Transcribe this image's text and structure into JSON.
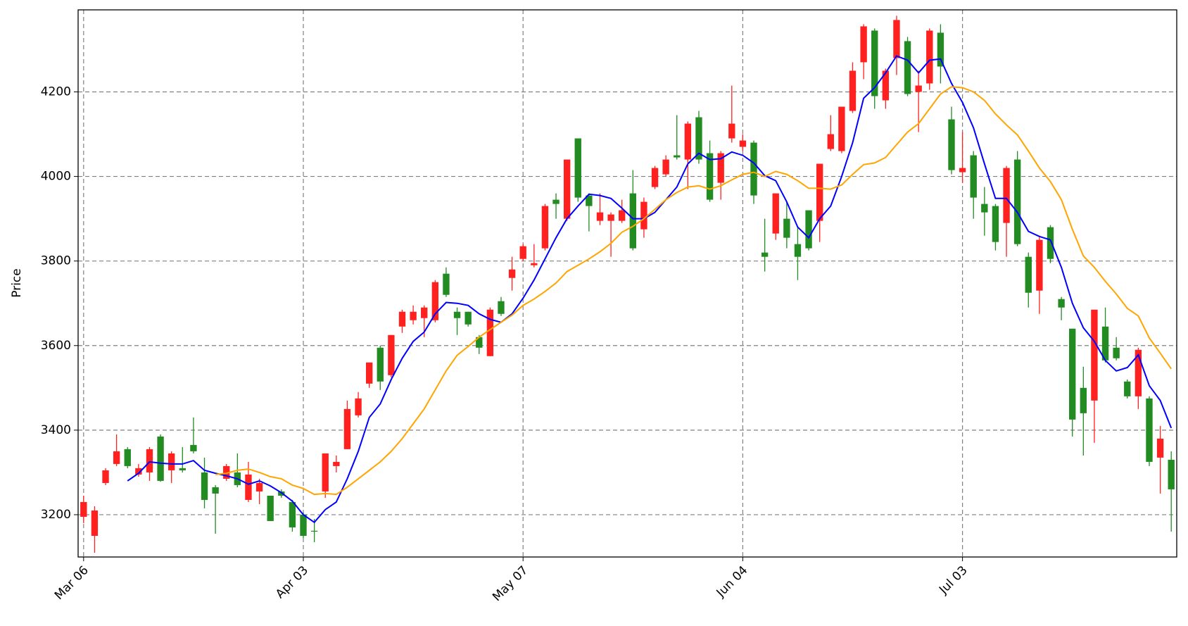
{
  "chart_data": {
    "type": "candlestick",
    "y_label": "Price",
    "categories": [
      "Mar 06",
      null,
      null,
      null,
      null,
      null,
      null,
      null,
      null,
      null,
      null,
      null,
      null,
      null,
      null,
      null,
      null,
      null,
      null,
      null,
      "Apr 03",
      null,
      null,
      null,
      null,
      null,
      null,
      null,
      null,
      null,
      null,
      null,
      null,
      null,
      null,
      null,
      null,
      null,
      null,
      null,
      "May 07",
      null,
      null,
      null,
      null,
      null,
      null,
      null,
      null,
      null,
      null,
      null,
      null,
      null,
      null,
      null,
      null,
      null,
      null,
      null,
      "Jun 04",
      null,
      null,
      null,
      null,
      null,
      null,
      null,
      null,
      null,
      null,
      null,
      null,
      null,
      null,
      null,
      null,
      null,
      null,
      null,
      "Jul 03",
      null,
      null,
      null,
      null,
      null,
      null,
      null,
      null,
      null,
      null,
      null,
      null,
      null,
      null,
      null,
      null,
      null,
      null,
      null
    ],
    "open": [
      3195,
      3150,
      3275,
      3320,
      3355,
      3295,
      3300,
      3385,
      3305,
      3310,
      3365,
      3300,
      3265,
      3285,
      3300,
      3235,
      3255,
      3245,
      3255,
      3230,
      3200,
      3162,
      3255,
      3315,
      3355,
      3435,
      3510,
      3595,
      3530,
      3645,
      3660,
      3665,
      3660,
      3770,
      3680,
      3680,
      3620,
      3575,
      3705,
      3760,
      3805,
      3790,
      3830,
      3945,
      3900,
      4090,
      3955,
      3895,
      3895,
      3895,
      3960,
      3875,
      3975,
      4005,
      4050,
      4040,
      4140,
      4055,
      3985,
      4090,
      4070,
      4080,
      3820,
      3865,
      3900,
      3840,
      3920,
      3895,
      4065,
      4060,
      4155,
      4270,
      4345,
      4180,
      4280,
      4320,
      4200,
      4220,
      4340,
      4135,
      4010,
      4050,
      3935,
      3930,
      3890,
      4040,
      3810,
      3730,
      3880,
      3710,
      3640,
      3500,
      3470,
      3645,
      3595,
      3515,
      3480,
      3475,
      3335,
      3330
    ],
    "high": [
      3245,
      3220,
      3310,
      3390,
      3360,
      3320,
      3360,
      3390,
      3350,
      3360,
      3430,
      3335,
      3270,
      3320,
      3345,
      3325,
      3285,
      3245,
      3260,
      3235,
      3205,
      3190,
      3345,
      3340,
      3470,
      3490,
      3560,
      3600,
      3625,
      3685,
      3695,
      3695,
      3755,
      3785,
      3690,
      3680,
      3625,
      3690,
      3715,
      3810,
      3840,
      3840,
      3935,
      3960,
      4040,
      4090,
      3960,
      3960,
      3915,
      3945,
      4015,
      3950,
      4025,
      4050,
      4145,
      4130,
      4155,
      4085,
      4060,
      4215,
      4100,
      4085,
      3900,
      3960,
      3940,
      3880,
      3920,
      4030,
      4145,
      4165,
      4270,
      4360,
      4350,
      4255,
      4380,
      4330,
      4250,
      4350,
      4360,
      4165,
      4105,
      4060,
      3975,
      3935,
      4025,
      4060,
      3820,
      3860,
      3885,
      3715,
      3640,
      3550,
      3685,
      3690,
      3620,
      3520,
      3595,
      3480,
      3410,
      3350
    ],
    "low": [
      3180,
      3110,
      3270,
      3315,
      3310,
      3290,
      3280,
      3278,
      3275,
      3300,
      3345,
      3215,
      3155,
      3280,
      3265,
      3230,
      3225,
      3185,
      3240,
      3160,
      3145,
      3135,
      3240,
      3300,
      3355,
      3430,
      3500,
      3495,
      3525,
      3630,
      3650,
      3620,
      3655,
      3715,
      3625,
      3645,
      3580,
      3575,
      3670,
      3730,
      3800,
      3785,
      3825,
      3900,
      3895,
      3940,
      3870,
      3885,
      3810,
      3890,
      3825,
      3855,
      3970,
      4000,
      4040,
      3970,
      4030,
      3940,
      3945,
      4080,
      4060,
      3935,
      3775,
      3850,
      3830,
      3755,
      3825,
      3845,
      4060,
      4055,
      4150,
      4230,
      4160,
      4160,
      4240,
      4190,
      4105,
      4205,
      4220,
      4005,
      3985,
      3900,
      3860,
      3825,
      3810,
      3835,
      3690,
      3675,
      3795,
      3660,
      3385,
      3340,
      3370,
      3560,
      3565,
      3475,
      3450,
      3315,
      3250,
      3160
    ],
    "close": [
      3230,
      3210,
      3305,
      3350,
      3315,
      3310,
      3355,
      3280,
      3345,
      3305,
      3350,
      3235,
      3250,
      3315,
      3270,
      3295,
      3275,
      3185,
      3245,
      3170,
      3150,
      3160,
      3345,
      3325,
      3450,
      3475,
      3560,
      3515,
      3625,
      3680,
      3680,
      3690,
      3750,
      3720,
      3665,
      3650,
      3595,
      3685,
      3675,
      3780,
      3835,
      3795,
      3930,
      3935,
      4040,
      3950,
      3930,
      3915,
      3910,
      3920,
      3830,
      3940,
      4020,
      4040,
      4045,
      4125,
      4040,
      3945,
      4055,
      4125,
      4085,
      3955,
      3810,
      3960,
      3855,
      3810,
      3830,
      4030,
      4100,
      4165,
      4250,
      4355,
      4190,
      4250,
      4370,
      4195,
      4215,
      4345,
      4260,
      4015,
      4020,
      3950,
      3915,
      3845,
      4020,
      3840,
      3725,
      3850,
      3805,
      3690,
      3425,
      3440,
      3685,
      3565,
      3570,
      3480,
      3590,
      3325,
      3380,
      3260
    ],
    "up_color": "#ff2020",
    "down_color": "#228b22",
    "moving_averages": [
      {
        "color": "#0000ff",
        "values": [
          null,
          null,
          null,
          null,
          3280,
          3298,
          3325,
          3322,
          3320,
          3320,
          3328,
          3305,
          3298,
          3292,
          3285,
          3272,
          3280,
          3268,
          3252,
          3232,
          3200,
          3182,
          3212,
          3230,
          3285,
          3350,
          3430,
          3462,
          3520,
          3570,
          3610,
          3632,
          3675,
          3702,
          3700,
          3695,
          3675,
          3662,
          3655,
          3675,
          3712,
          3755,
          3805,
          3855,
          3900,
          3930,
          3958,
          3955,
          3948,
          3925,
          3900,
          3900,
          3915,
          3945,
          3975,
          4030,
          4055,
          4040,
          4042,
          4058,
          4050,
          4032,
          4002,
          3990,
          3940,
          3880,
          3855,
          3900,
          3930,
          4000,
          4080,
          4185,
          4210,
          4245,
          4285,
          4275,
          4245,
          4275,
          4278,
          4220,
          4175,
          4115,
          4030,
          3948,
          3948,
          3915,
          3870,
          3858,
          3850,
          3785,
          3700,
          3642,
          3610,
          3565,
          3540,
          3548,
          3578,
          3505,
          3470,
          3405
        ]
      },
      {
        "color": "#ffa500",
        "values": [
          null,
          null,
          null,
          null,
          null,
          null,
          null,
          null,
          null,
          null,
          null,
          null,
          3295,
          3298,
          3305,
          3308,
          3300,
          3290,
          3285,
          3270,
          3262,
          3248,
          3250,
          3248,
          3265,
          3285,
          3305,
          3325,
          3350,
          3380,
          3415,
          3450,
          3495,
          3540,
          3577,
          3598,
          3620,
          3638,
          3655,
          3672,
          3695,
          3710,
          3728,
          3748,
          3775,
          3790,
          3805,
          3822,
          3842,
          3868,
          3882,
          3900,
          3922,
          3945,
          3962,
          3975,
          3978,
          3970,
          3978,
          3992,
          4005,
          4010,
          4000,
          4012,
          4005,
          3990,
          3972,
          3972,
          3970,
          3980,
          4005,
          4028,
          4032,
          4045,
          4075,
          4105,
          4125,
          4160,
          4195,
          4212,
          4210,
          4200,
          4180,
          4148,
          4122,
          4098,
          4060,
          4020,
          3988,
          3945,
          3875,
          3812,
          3785,
          3752,
          3722,
          3688,
          3670,
          3618,
          3582,
          3545
        ]
      }
    ],
    "ylim": [
      3100,
      4394
    ],
    "yticks": [
      3200,
      3400,
      3600,
      3800,
      4000,
      4200
    ],
    "grid": true
  }
}
